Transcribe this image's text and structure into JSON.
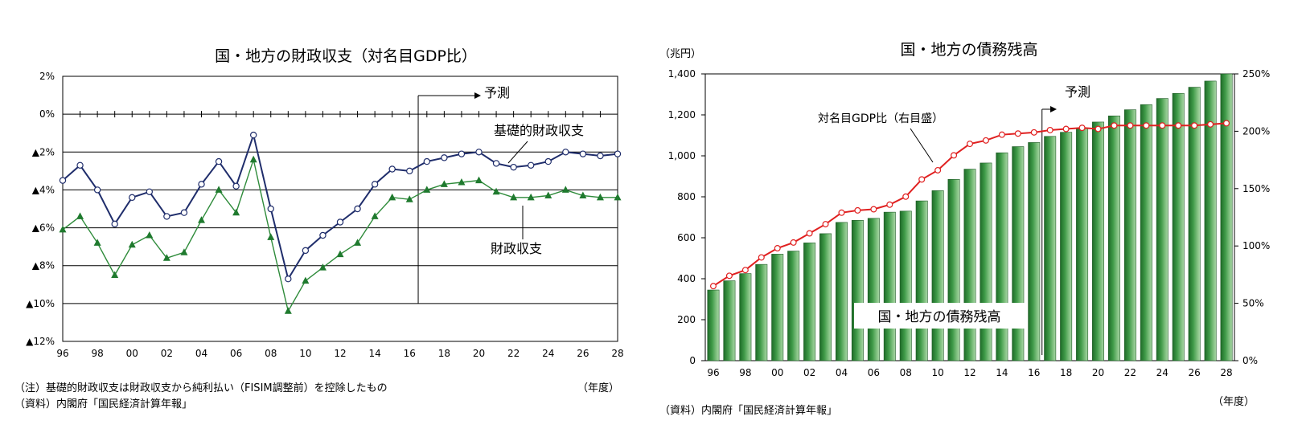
{
  "chart_data": [
    {
      "type": "line",
      "title": "国・地方の財政収支（対名目GDP比）",
      "x": [
        1996,
        1997,
        1998,
        1999,
        2000,
        2001,
        2002,
        2003,
        2004,
        2005,
        2006,
        2007,
        2008,
        2009,
        2010,
        2011,
        2012,
        2013,
        2014,
        2015,
        2016,
        2017,
        2018,
        2019,
        2020,
        2021,
        2022,
        2023,
        2024,
        2025,
        2026,
        2027,
        2028
      ],
      "x_tick_labels": [
        "96",
        "98",
        "00",
        "02",
        "04",
        "06",
        "08",
        "10",
        "12",
        "14",
        "16",
        "18",
        "20",
        "22",
        "24",
        "26",
        "28"
      ],
      "x_tick_years": [
        1996,
        1998,
        2000,
        2002,
        2004,
        2006,
        2008,
        2010,
        2012,
        2014,
        2016,
        2018,
        2020,
        2022,
        2024,
        2026,
        2028
      ],
      "ylim": [
        -12,
        2
      ],
      "y_ticks": [
        2,
        0,
        -2,
        -4,
        -6,
        -8,
        -10,
        -12
      ],
      "y_tick_labels": [
        "2%",
        "0%",
        "▲2%",
        "▲4%",
        "▲6%",
        "▲8%",
        "▲10%",
        "▲12%"
      ],
      "grid": "horizontal",
      "series": [
        {
          "name": "基礎的財政収支",
          "color": "#1f2d6b",
          "marker": "circle",
          "values": [
            -3.5,
            -2.7,
            -4.0,
            -5.8,
            -4.4,
            -4.1,
            -5.4,
            -5.2,
            -3.7,
            -2.5,
            -3.8,
            -1.1,
            -5.0,
            -8.7,
            -7.2,
            -6.4,
            -5.7,
            -5.0,
            -3.7,
            -2.9,
            -3.0,
            -2.5,
            -2.3,
            -2.1,
            -2.0,
            -2.6,
            -2.8,
            -2.7,
            -2.5,
            -2.0,
            -2.1,
            -2.2,
            -2.1
          ]
        },
        {
          "name": "財政収支",
          "color": "#2e8b3a",
          "marker": "triangle",
          "values": [
            -6.1,
            -5.4,
            -6.8,
            -8.5,
            -6.9,
            -6.4,
            -7.6,
            -7.3,
            -5.6,
            -4.0,
            -5.2,
            -2.4,
            -6.5,
            -10.4,
            -8.8,
            -8.1,
            -7.4,
            -6.8,
            -5.4,
            -4.4,
            -4.5,
            -4.0,
            -3.7,
            -3.6,
            -3.5,
            -4.1,
            -4.4,
            -4.4,
            -4.3,
            -4.0,
            -4.3,
            -4.4,
            -4.4
          ]
        }
      ],
      "annotations": {
        "forecast": "予測",
        "primary_balance": "基礎的財政収支",
        "fiscal_balance": "財政収支"
      },
      "forecast_year": 2016.5,
      "unit_label": "（年度）",
      "footnote": "（注）基礎的財政収支は財政収支から純利払い（FISIM調整前）を控除したもの",
      "source": "（資料）内閣府「国民経済計算年報」"
    },
    {
      "type": "bar",
      "title": "国・地方の債務残高",
      "x": [
        1996,
        1997,
        1998,
        1999,
        2000,
        2001,
        2002,
        2003,
        2004,
        2005,
        2006,
        2007,
        2008,
        2009,
        2010,
        2011,
        2012,
        2013,
        2014,
        2015,
        2016,
        2017,
        2018,
        2019,
        2020,
        2021,
        2022,
        2023,
        2024,
        2025,
        2026,
        2027,
        2028
      ],
      "x_tick_labels": [
        "96",
        "98",
        "00",
        "02",
        "04",
        "06",
        "08",
        "10",
        "12",
        "14",
        "16",
        "18",
        "20",
        "22",
        "24",
        "26",
        "28"
      ],
      "x_tick_years": [
        1996,
        1998,
        2000,
        2002,
        2004,
        2006,
        2008,
        2010,
        2012,
        2014,
        2016,
        2018,
        2020,
        2022,
        2024,
        2026,
        2028
      ],
      "left_axis_unit": "（兆円）",
      "ylim": [
        0,
        1400
      ],
      "y_ticks": [
        0,
        200,
        400,
        600,
        800,
        1000,
        1200,
        1400
      ],
      "y_tick_labels": [
        "0",
        "200",
        "400",
        "600",
        "800",
        "1,000",
        "1,200",
        "1,400"
      ],
      "y2lim": [
        0,
        250
      ],
      "y2_ticks": [
        0,
        50,
        100,
        150,
        200,
        250
      ],
      "y2_tick_labels": [
        "0%",
        "50%",
        "100%",
        "150%",
        "200%",
        "250%"
      ],
      "series": [
        {
          "name": "国・地方の債務残高",
          "color": "#2e8b3a",
          "axis": "left",
          "values": [
            345,
            390,
            425,
            470,
            520,
            535,
            575,
            620,
            675,
            685,
            695,
            725,
            730,
            780,
            830,
            885,
            935,
            965,
            1015,
            1045,
            1065,
            1095,
            1115,
            1135,
            1165,
            1195,
            1225,
            1250,
            1280,
            1305,
            1335,
            1365,
            1400
          ]
        },
        {
          "name": "対名目GDP比（右目盛）",
          "color": "#e02020",
          "axis": "right",
          "marker": "circle",
          "values": [
            65,
            74,
            79,
            90,
            98,
            103,
            111,
            119,
            129,
            131,
            132,
            136,
            143,
            158,
            166,
            179,
            189,
            192,
            197,
            198,
            199,
            201,
            202,
            203,
            202,
            205,
            205,
            205,
            205,
            205,
            205,
            206,
            207
          ]
        }
      ],
      "annotations": {
        "forecast": "予測",
        "ratio": "対名目GDP比（右目盛）",
        "debt": "国・地方の債務残高"
      },
      "forecast_year": 2016.5,
      "unit_label": "（年度）",
      "source": "（資料）内閣府「国民経済計算年報」"
    }
  ]
}
